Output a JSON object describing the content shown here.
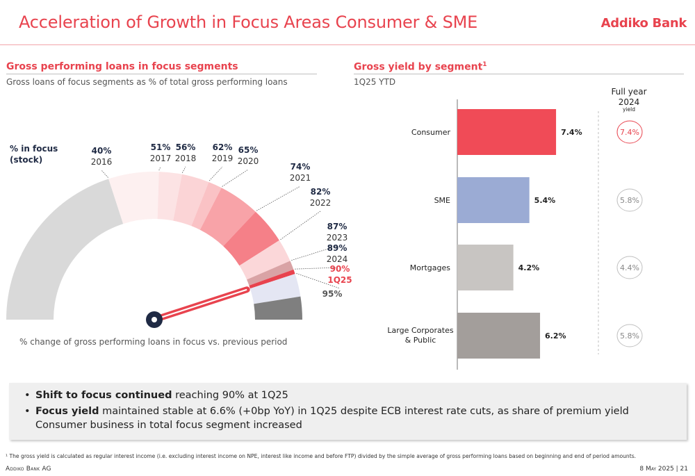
{
  "header": {
    "title": "Acceleration of Growth in Focus Areas Consumer & SME",
    "logo_text": "Addiko Bank",
    "brand_color": "#e8434e"
  },
  "left": {
    "title": "Gross performing loans in focus segments",
    "subtitle": "Gross loans of focus segments as % of total gross performing loans",
    "stock_label_line1": "% in focus",
    "stock_label_line2": "(stock)",
    "bottom_note": "% change of gross performing loans in focus vs. previous period"
  },
  "right": {
    "title": "Gross yield by segment",
    "title_sup": "1",
    "subtitle": "1Q25 YTD",
    "fy_line1": "Full year",
    "fy_line2": "2024",
    "fy_line3": "yield"
  },
  "bullets": [
    {
      "bold": "Shift to focus continued",
      "rest": " reaching 90% at 1Q25"
    },
    {
      "bold": "Focus yield",
      "rest": " maintained stable at 6.6% (+0bp YoY) in 1Q25 despite ECB interest rate cuts, as share of premium yield Consumer business in total focus segment increased"
    }
  ],
  "footer": {
    "footnote": "¹ The gross yield is calculated as regular interest income (i.e. excluding interest income on NPE, interest like income and before FTP) divided by the simple average of gross performing loans based on beginning and end of period amounts.",
    "company": "Addiko Bank AG",
    "date_page": "8 May 2025 | 21"
  },
  "chart_data": [
    {
      "type": "gauge",
      "series": [
        {
          "pct": "40%",
          "period": "2016",
          "value": 40,
          "color": "#d9d9d9"
        },
        {
          "pct": "51%",
          "period": "2017",
          "value": 51,
          "color": "#fdf0f0"
        },
        {
          "pct": "56%",
          "period": "2018",
          "value": 56,
          "color": "#fce3e4"
        },
        {
          "pct": "62%",
          "period": "2019",
          "value": 62,
          "color": "#fbd4d6"
        },
        {
          "pct": "65%",
          "period": "2020",
          "value": 65,
          "color": "#fac2c5"
        },
        {
          "pct": "74%",
          "period": "2021",
          "value": 74,
          "color": "#f8a3a8"
        },
        {
          "pct": "82%",
          "period": "2022",
          "value": 82,
          "color": "#f58088"
        },
        {
          "pct": "87%",
          "period": "2023",
          "value": 87,
          "color": "#fbd7d9"
        },
        {
          "pct": "89%",
          "period": "2024",
          "value": 89,
          "color": "#d9a3a5"
        },
        {
          "pct": "90%",
          "period": "1Q25",
          "value": 90,
          "color": "#e8434e"
        },
        {
          "pct": "95%",
          "period": "",
          "value": 95,
          "color": "#e4e6f3"
        }
      ],
      "end_value": 100,
      "end_color": "#7f7f7f",
      "needle_value": 90,
      "range": [
        0,
        100
      ]
    },
    {
      "type": "bar",
      "orientation": "horizontal",
      "categories": [
        "Consumer",
        "SME",
        "Mortgages",
        "Large Corporates & Public"
      ],
      "values": [
        7.4,
        5.4,
        4.2,
        6.2
      ],
      "value_labels": [
        "7.4%",
        "5.4%",
        "4.2%",
        "6.2%"
      ],
      "colors": [
        "#f04b57",
        "#9babd4",
        "#c8c5c2",
        "#a39e9b"
      ],
      "full_year_2024": [
        "7.4%",
        "5.8%",
        "4.4%",
        "5.8%"
      ],
      "xlim": [
        0,
        10
      ]
    }
  ]
}
